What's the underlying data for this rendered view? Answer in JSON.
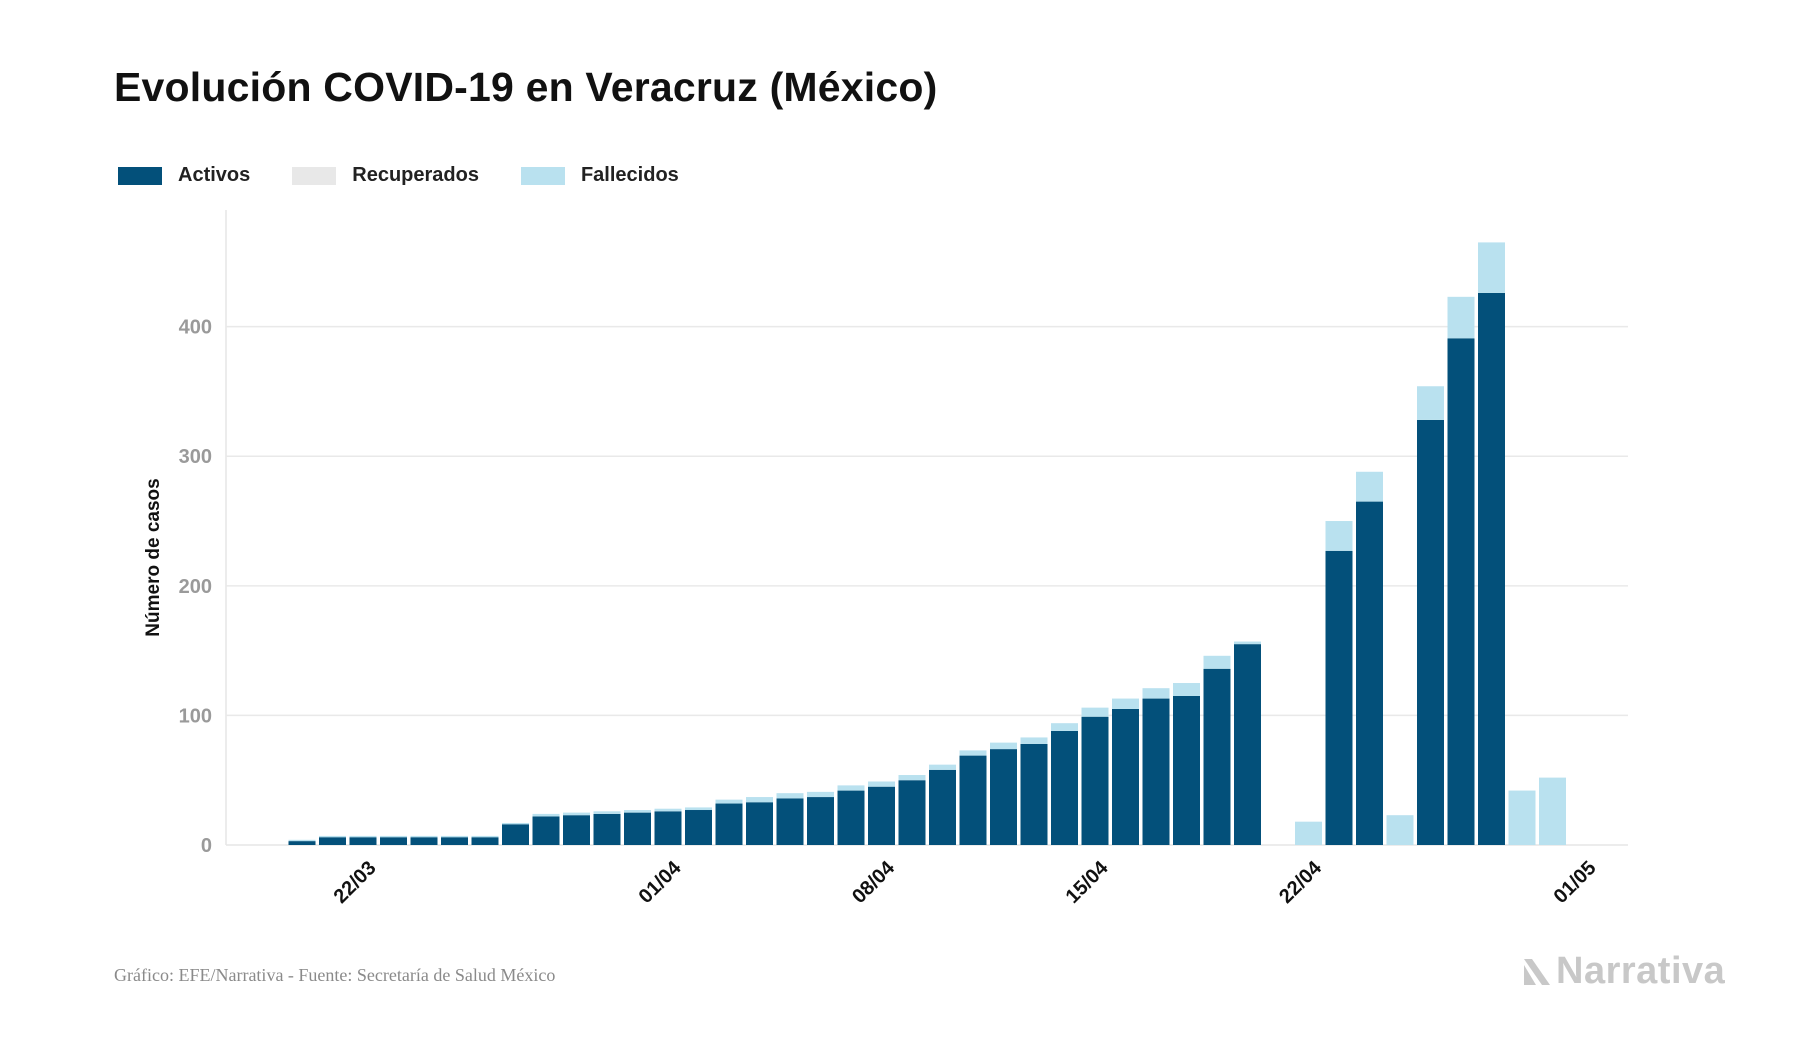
{
  "header": {
    "title": "Evolución COVID-19 en Veracruz (México)"
  },
  "legend": [
    {
      "label": "Activos",
      "color": "#03507a"
    },
    {
      "label": "Recuperados",
      "color": "#e8e8e8"
    },
    {
      "label": "Fallecidos",
      "color": "#b9e1ef"
    }
  ],
  "footer": {
    "source": "Gráfico: EFE/Narrativa - Fuente: Secretaría de Salud México",
    "brand": "Narrativa"
  },
  "chart_data": {
    "type": "bar",
    "stacked": true,
    "ylabel": "Número de casos",
    "xlabel": "",
    "ylim": [
      0,
      490
    ],
    "yticks": [
      0,
      100,
      200,
      300,
      400
    ],
    "grid": true,
    "legend_position": "top-left",
    "categories": [
      "20/03",
      "21/03",
      "22/03",
      "23/03",
      "24/03",
      "25/03",
      "26/03",
      "27/03",
      "28/03",
      "29/03",
      "30/03",
      "31/03",
      "01/04",
      "02/04",
      "03/04",
      "04/04",
      "05/04",
      "06/04",
      "07/04",
      "08/04",
      "09/04",
      "10/04",
      "11/04",
      "12/04",
      "13/04",
      "14/04",
      "15/04",
      "16/04",
      "17/04",
      "18/04",
      "19/04",
      "20/04",
      "21/04",
      "22/04",
      "23/04",
      "24/04",
      "25/04",
      "26/04",
      "27/04",
      "28/04",
      "29/04",
      "30/04"
    ],
    "xtick_labels": [
      "22/03",
      "01/04",
      "08/04",
      "15/04",
      "22/04",
      "01/05"
    ],
    "series": [
      {
        "name": "Activos",
        "color": "#03507a",
        "values": [
          3,
          6,
          6,
          6,
          6,
          6,
          6,
          16,
          22,
          23,
          24,
          25,
          26,
          27,
          32,
          33,
          36,
          37,
          42,
          45,
          50,
          58,
          69,
          74,
          78,
          88,
          99,
          105,
          113,
          115,
          136,
          155,
          0,
          0,
          227,
          265,
          0,
          328,
          391,
          426,
          0,
          0
        ]
      },
      {
        "name": "Recuperados",
        "color": "#e8e8e8",
        "values": [
          0,
          0,
          0,
          0,
          0,
          0,
          0,
          0,
          0,
          0,
          0,
          0,
          0,
          0,
          0,
          0,
          0,
          0,
          0,
          0,
          0,
          0,
          0,
          0,
          0,
          0,
          0,
          0,
          0,
          0,
          0,
          0,
          0,
          0,
          0,
          0,
          0,
          0,
          0,
          0,
          0,
          0
        ]
      },
      {
        "name": "Fallecidos",
        "color": "#b9e1ef",
        "values": [
          1,
          1,
          1,
          1,
          1,
          1,
          1,
          1,
          2,
          2,
          2,
          2,
          2,
          2,
          3,
          4,
          4,
          4,
          4,
          4,
          4,
          4,
          4,
          5,
          5,
          6,
          7,
          8,
          8,
          10,
          10,
          2,
          0,
          18,
          23,
          23,
          23,
          26,
          32,
          39,
          42,
          52
        ]
      }
    ]
  }
}
